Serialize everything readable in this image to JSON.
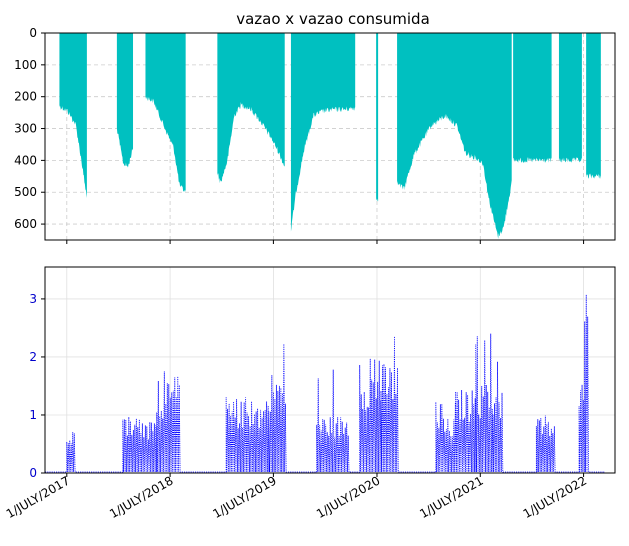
{
  "chart_data": [
    {
      "type": "bar",
      "title": "vazao x vazao consumida",
      "xlabel": "",
      "ylabel": "",
      "ylim": [
        650,
        0
      ],
      "y_inverted": true,
      "y_ticks": [
        0,
        100,
        200,
        300,
        400,
        500,
        600
      ],
      "grid": true,
      "color": "#00c0c0",
      "x_range": [
        "2017-04-15",
        "2022-10-20"
      ],
      "segments": [
        {
          "start": "2017-06-05",
          "end": "2017-09-10",
          "ramp": [
            [
              0,
              230
            ],
            [
              0.3,
              245
            ],
            [
              0.6,
              290
            ],
            [
              0.8,
              400
            ],
            [
              1,
              520
            ]
          ]
        },
        {
          "start": "2017-12-25",
          "end": "2018-02-20",
          "ramp": [
            [
              0,
              300
            ],
            [
              0.4,
              410
            ],
            [
              0.7,
              420
            ],
            [
              1,
              360
            ]
          ]
        },
        {
          "start": "2018-04-05",
          "end": "2018-08-25",
          "ramp": [
            [
              0,
              200
            ],
            [
              0.2,
              215
            ],
            [
              0.45,
              290
            ],
            [
              0.7,
              360
            ],
            [
              0.85,
              480
            ],
            [
              1,
              500
            ]
          ]
        },
        {
          "start": "2018-12-15",
          "end": "2019-08-10",
          "ramp": [
            [
              0,
              440
            ],
            [
              0.05,
              470
            ],
            [
              0.15,
              400
            ],
            [
              0.25,
              260
            ],
            [
              0.35,
              225
            ],
            [
              0.5,
              240
            ],
            [
              0.65,
              280
            ],
            [
              0.8,
              330
            ],
            [
              0.9,
              370
            ],
            [
              1,
              420
            ]
          ]
        },
        {
          "start": "2019-09-01",
          "end": "2020-04-15",
          "ramp": [
            [
              0,
              620
            ],
            [
              0.08,
              500
            ],
            [
              0.2,
              370
            ],
            [
              0.35,
              260
            ],
            [
              0.5,
              245
            ],
            [
              0.7,
              240
            ],
            [
              0.85,
              240
            ],
            [
              1,
              235
            ]
          ]
        },
        {
          "start": "2020-06-28",
          "end": "2020-07-05",
          "ramp": [
            [
              0,
              520
            ],
            [
              1,
              520
            ]
          ]
        },
        {
          "start": "2020-09-10",
          "end": "2021-10-20",
          "ramp": [
            [
              0,
              470
            ],
            [
              0.06,
              490
            ],
            [
              0.15,
              380
            ],
            [
              0.3,
              290
            ],
            [
              0.42,
              260
            ],
            [
              0.52,
              290
            ],
            [
              0.6,
              380
            ],
            [
              0.68,
              390
            ],
            [
              0.75,
              410
            ],
            [
              0.8,
              520
            ],
            [
              0.88,
              640
            ],
            [
              0.93,
              610
            ],
            [
              1,
              470
            ]
          ]
        },
        {
          "start": "2021-10-25",
          "end": "2022-03-10",
          "ramp": [
            [
              0,
              400
            ],
            [
              1,
              400
            ]
          ]
        },
        {
          "start": "2022-04-05",
          "end": "2022-06-25",
          "ramp": [
            [
              0,
              400
            ],
            [
              1,
              400
            ]
          ]
        },
        {
          "start": "2022-07-10",
          "end": "2022-08-31",
          "ramp": [
            [
              0,
              450
            ],
            [
              1,
              450
            ]
          ]
        }
      ]
    },
    {
      "type": "line",
      "title": "",
      "xlabel": "",
      "ylabel": "",
      "ylim": [
        0,
        3.55
      ],
      "y_ticks": [
        0,
        1,
        2,
        3
      ],
      "grid": true,
      "color": "#0000ff",
      "line_style": "dotted",
      "x_range": [
        "2017-04-15",
        "2022-10-20"
      ],
      "x_ticks": [
        "2017-07-01",
        "2018-07-01",
        "2019-07-01",
        "2020-07-01",
        "2021-07-01",
        "2022-07-01"
      ],
      "x_tick_labels": [
        "1/JULY/2017",
        "1/JULY/2018",
        "1/JULY/2019",
        "1/JULY/2020",
        "1/JULY/2021",
        "1/JULY/2022"
      ],
      "bursts": [
        {
          "start": "2017-07-01",
          "end": "2017-08-01",
          "peak": 0.78,
          "base": 0.75
        },
        {
          "start": "2018-01-15",
          "end": "2018-05-15",
          "peak": 1.0,
          "base": 0.95
        },
        {
          "start": "2018-05-15",
          "end": "2018-08-05",
          "peak": 1.78,
          "base": 1.55
        },
        {
          "start": "2019-01-15",
          "end": "2019-06-15",
          "peak": 1.4,
          "base": 1.25
        },
        {
          "start": "2019-06-15",
          "end": "2019-08-15",
          "peak": 2.25,
          "base": 1.75
        },
        {
          "start": "2019-12-01",
          "end": "2020-03-25",
          "peak": 1.8,
          "base": 1.0
        },
        {
          "start": "2020-05-01",
          "end": "2020-07-15",
          "peak": 2.1,
          "base": 1.8
        },
        {
          "start": "2020-07-15",
          "end": "2020-09-15",
          "peak": 2.57,
          "base": 1.9
        },
        {
          "start": "2021-01-25",
          "end": "2021-04-05",
          "peak": 1.3,
          "base": 0.95
        },
        {
          "start": "2021-04-05",
          "end": "2021-06-15",
          "peak": 1.5,
          "base": 1.45
        },
        {
          "start": "2021-06-15",
          "end": "2021-08-15",
          "peak": 2.58,
          "base": 1.55
        },
        {
          "start": "2021-08-15",
          "end": "2021-09-20",
          "peak": 2.2,
          "base": 1.5
        },
        {
          "start": "2022-01-15",
          "end": "2022-03-20",
          "peak": 1.0,
          "base": 0.95
        },
        {
          "start": "2022-06-15",
          "end": "2022-07-05",
          "peak": 1.55,
          "base": 1.45
        },
        {
          "start": "2022-07-05",
          "end": "2022-07-20",
          "peak": 3.5,
          "base": 2.8
        }
      ]
    }
  ]
}
